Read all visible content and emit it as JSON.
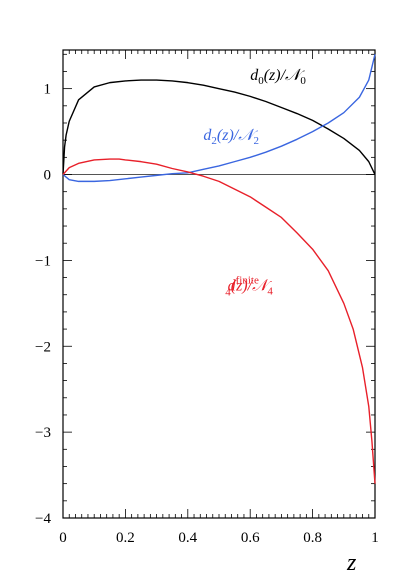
{
  "chart_data": {
    "type": "line",
    "title": "",
    "xlabel": "z",
    "ylabel": "",
    "xlim": [
      0,
      1
    ],
    "ylim": [
      -4,
      1.45
    ],
    "xticks": [
      "0",
      "0.2",
      "0.4",
      "0.6",
      "0.8",
      "1"
    ],
    "yticks": [
      "1",
      "0",
      "−1",
      "−2",
      "−3",
      "−4"
    ],
    "grid": false,
    "zero_line": true,
    "series": [
      {
        "name": "d0(z)/N0",
        "color": "#000000",
        "x": [
          0,
          0.005,
          0.01,
          0.02,
          0.05,
          0.1,
          0.15,
          0.2,
          0.25,
          0.3,
          0.35,
          0.4,
          0.45,
          0.5,
          0.55,
          0.6,
          0.65,
          0.7,
          0.75,
          0.8,
          0.85,
          0.9,
          0.95,
          0.98,
          1.0
        ],
        "y": [
          0,
          0.32,
          0.46,
          0.62,
          0.87,
          1.02,
          1.07,
          1.09,
          1.1,
          1.1,
          1.09,
          1.07,
          1.04,
          1.0,
          0.96,
          0.91,
          0.85,
          0.78,
          0.71,
          0.63,
          0.53,
          0.42,
          0.28,
          0.15,
          0
        ]
      },
      {
        "name": "d2(z)/N2",
        "color": "#3a66e0",
        "x": [
          0,
          0.02,
          0.05,
          0.1,
          0.15,
          0.2,
          0.25,
          0.3,
          0.35,
          0.4,
          0.45,
          0.5,
          0.55,
          0.6,
          0.65,
          0.7,
          0.75,
          0.8,
          0.85,
          0.9,
          0.95,
          0.98,
          1.0
        ],
        "y": [
          0,
          -0.06,
          -0.08,
          -0.08,
          -0.07,
          -0.05,
          -0.03,
          -0.01,
          0.01,
          0.02,
          0.06,
          0.1,
          0.15,
          0.2,
          0.26,
          0.33,
          0.41,
          0.5,
          0.6,
          0.72,
          0.9,
          1.1,
          1.4
        ]
      },
      {
        "name": "d4finite(z)/N4",
        "color": "#e8202a",
        "x": [
          0,
          0.02,
          0.05,
          0.1,
          0.15,
          0.18,
          0.2,
          0.25,
          0.3,
          0.35,
          0.4,
          0.45,
          0.5,
          0.55,
          0.6,
          0.65,
          0.7,
          0.75,
          0.8,
          0.85,
          0.9,
          0.93,
          0.96,
          0.98,
          0.99,
          1.0
        ],
        "y": [
          0,
          0.08,
          0.13,
          0.17,
          0.18,
          0.18,
          0.17,
          0.15,
          0.12,
          0.07,
          0.03,
          -0.02,
          -0.08,
          -0.17,
          -0.26,
          -0.38,
          -0.5,
          -0.68,
          -0.87,
          -1.12,
          -1.5,
          -1.8,
          -2.25,
          -2.7,
          -3.1,
          -3.6
        ]
      }
    ],
    "annotations": [
      {
        "series": 0,
        "x": 0.6,
        "y": 1.1,
        "base": "d",
        "sub": "0",
        "sup": "",
        "arg": "(z)/",
        "norm": "𝒩",
        "norm_sub": "0"
      },
      {
        "series": 1,
        "x": 0.45,
        "y": 0.4,
        "base": "d",
        "sub": "2",
        "sup": "",
        "arg": "(z)/",
        "norm": "𝒩",
        "norm_sub": "2"
      },
      {
        "series": 2,
        "x": 0.52,
        "y": -1.35,
        "base": "d",
        "sub": "4",
        "sup": "finite",
        "arg": "(z)/",
        "norm": "𝒩",
        "norm_sub": "4"
      }
    ]
  }
}
